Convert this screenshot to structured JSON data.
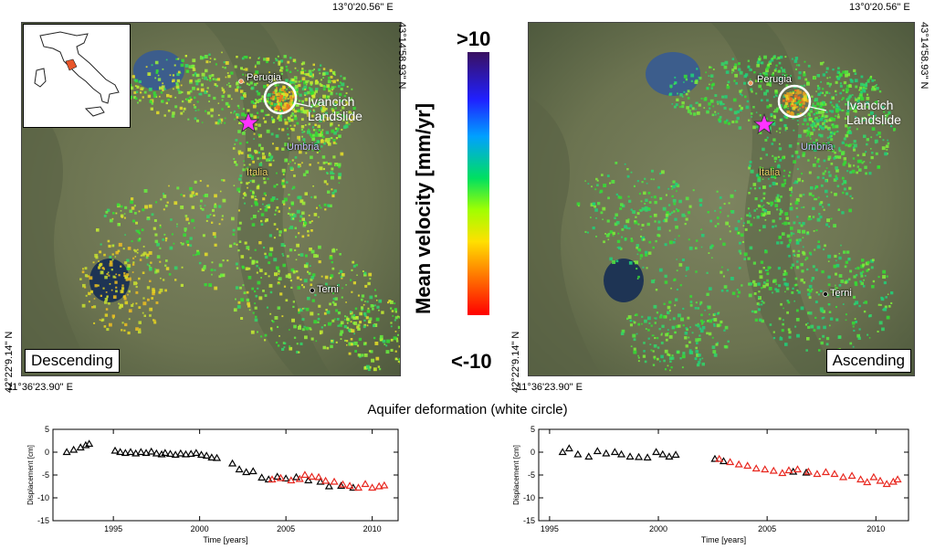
{
  "maps": {
    "lon_top": "13°0'20.56\" E",
    "lon_bottom": "11°36'23.90\" E",
    "lat_right": "43°14'58.93\" N",
    "lat_left": "42°22'9.14\" N",
    "places": {
      "perugia": "Perugia",
      "umbria": "Umbria",
      "italia": "Italia",
      "terni": "Terni"
    },
    "landslide_label_1": "Ivancich",
    "landslide_label_2": "Landslide",
    "descending": "Descending",
    "ascending": "Ascending"
  },
  "colorbar": {
    "title": "Mean velocity [mm/yr]",
    "top_label": ">10",
    "bottom_label": "<-10"
  },
  "section_title": "Aquifer deformation (white circle)",
  "chart_data": [
    {
      "type": "scatter",
      "xlabel": "Time [years]",
      "ylabel": "Displacement [cm]",
      "xlim": [
        1991.5,
        2011.5
      ],
      "ylim": [
        -15,
        5
      ],
      "xticks": [
        "1995",
        "2000",
        "2005",
        "2010"
      ],
      "yticks": [
        "5",
        "0",
        "-5",
        "-10",
        "-15"
      ],
      "series": [
        {
          "color": "#000000",
          "points": [
            [
              1992.3,
              0
            ],
            [
              1992.7,
              0.5
            ],
            [
              1993.1,
              1
            ],
            [
              1993.4,
              1.5
            ],
            [
              1993.6,
              1.8
            ],
            [
              1995.1,
              0.3
            ],
            [
              1995.4,
              0
            ],
            [
              1995.7,
              -0.2
            ],
            [
              1996.0,
              0
            ],
            [
              1996.3,
              -0.3
            ],
            [
              1996.6,
              0
            ],
            [
              1996.9,
              -0.2
            ],
            [
              1997.2,
              0.1
            ],
            [
              1997.5,
              -0.3
            ],
            [
              1997.8,
              -0.5
            ],
            [
              1998.0,
              -0.2
            ],
            [
              1998.3,
              -0.4
            ],
            [
              1998.6,
              -0.6
            ],
            [
              1998.9,
              -0.3
            ],
            [
              1999.2,
              -0.5
            ],
            [
              1999.5,
              -0.4
            ],
            [
              1999.8,
              -0.2
            ],
            [
              2000.1,
              -0.6
            ],
            [
              2000.4,
              -0.8
            ],
            [
              2000.7,
              -1.2
            ],
            [
              2001.0,
              -1.3
            ],
            [
              2001.9,
              -2.5
            ],
            [
              2002.3,
              -3.8
            ],
            [
              2002.7,
              -4.4
            ],
            [
              2003.1,
              -4.2
            ],
            [
              2003.6,
              -5.6
            ],
            [
              2004.0,
              -6
            ],
            [
              2004.5,
              -5.4
            ],
            [
              2005.0,
              -5.8
            ],
            [
              2005.6,
              -5.5
            ],
            [
              2006.3,
              -6.2
            ],
            [
              2007.0,
              -6.5
            ],
            [
              2007.5,
              -7.5
            ],
            [
              2008.2,
              -7.4
            ],
            [
              2008.9,
              -7.8
            ]
          ]
        },
        {
          "color": "#e8261e",
          "points": [
            [
              2004.2,
              -6
            ],
            [
              2004.7,
              -5.7
            ],
            [
              2005.3,
              -6.2
            ],
            [
              2005.8,
              -5.9
            ],
            [
              2006.1,
              -5
            ],
            [
              2006.5,
              -5.4
            ],
            [
              2006.9,
              -5.5
            ],
            [
              2007.3,
              -6.3
            ],
            [
              2007.8,
              -6.5
            ],
            [
              2008.3,
              -7.1
            ],
            [
              2008.7,
              -7.4
            ],
            [
              2009.2,
              -7.8
            ],
            [
              2009.6,
              -7
            ],
            [
              2010.0,
              -7.8
            ],
            [
              2010.4,
              -7.5
            ],
            [
              2010.7,
              -7.3
            ]
          ]
        }
      ]
    },
    {
      "type": "scatter",
      "xlabel": "Time [years]",
      "ylabel": "Displacement [cm]",
      "xlim": [
        1994.5,
        2011.5
      ],
      "ylim": [
        -15,
        5
      ],
      "xticks": [
        "1995",
        "2000",
        "2005",
        "2010"
      ],
      "yticks": [
        "5",
        "0",
        "-5",
        "-10",
        "-15"
      ],
      "series": [
        {
          "color": "#000000",
          "points": [
            [
              1995.6,
              0
            ],
            [
              1995.9,
              0.8
            ],
            [
              1996.3,
              -0.5
            ],
            [
              1996.8,
              -1
            ],
            [
              1997.2,
              0.2
            ],
            [
              1997.6,
              -0.3
            ],
            [
              1998.0,
              0
            ],
            [
              1998.3,
              -0.5
            ],
            [
              1998.7,
              -1
            ],
            [
              1999.1,
              -1.1
            ],
            [
              1999.5,
              -1.2
            ],
            [
              1999.9,
              0
            ],
            [
              2000.2,
              -0.5
            ],
            [
              2000.5,
              -1
            ],
            [
              2000.8,
              -0.6
            ],
            [
              2002.6,
              -1.5
            ],
            [
              2003.0,
              -2
            ],
            [
              2006.2,
              -4.3
            ],
            [
              2006.8,
              -4.5
            ]
          ]
        },
        {
          "color": "#e8261e",
          "points": [
            [
              2002.8,
              -1.5
            ],
            [
              2003.3,
              -2.2
            ],
            [
              2003.7,
              -2.7
            ],
            [
              2004.1,
              -3
            ],
            [
              2004.5,
              -3.6
            ],
            [
              2004.9,
              -3.8
            ],
            [
              2005.3,
              -4.1
            ],
            [
              2005.7,
              -4.6
            ],
            [
              2006.0,
              -4
            ],
            [
              2006.4,
              -3.8
            ],
            [
              2006.9,
              -4.3
            ],
            [
              2007.3,
              -4.8
            ],
            [
              2007.7,
              -4.4
            ],
            [
              2008.1,
              -4.8
            ],
            [
              2008.5,
              -5.5
            ],
            [
              2008.9,
              -5.2
            ],
            [
              2009.3,
              -6
            ],
            [
              2009.6,
              -6.6
            ],
            [
              2009.9,
              -5.5
            ],
            [
              2010.2,
              -6.3
            ],
            [
              2010.5,
              -7
            ],
            [
              2010.8,
              -6.5
            ],
            [
              2011.0,
              -6
            ]
          ]
        }
      ]
    }
  ]
}
